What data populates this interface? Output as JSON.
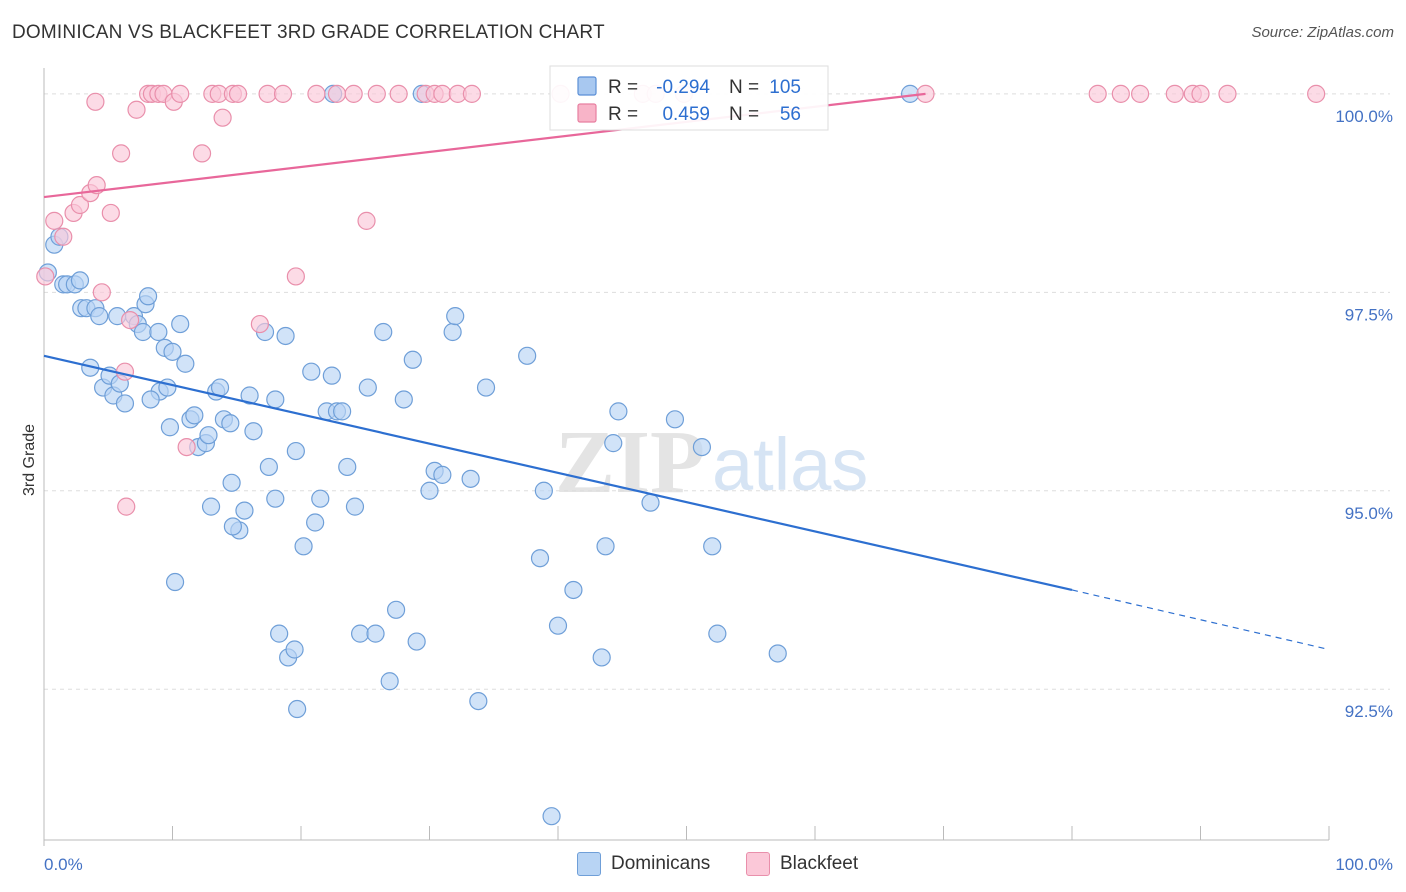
{
  "title": "DOMINICAN VS BLACKFEET 3RD GRADE CORRELATION CHART",
  "source": "Source: ZipAtlas.com",
  "watermark": {
    "zip": "ZIP",
    "atlas": "atlas"
  },
  "legend": {
    "rows": [
      {
        "r_label": "R =",
        "r_value": "-0.294",
        "n_label": "N =",
        "n_value": "105",
        "color": "#a8c8f0",
        "border": "#5b8fd6"
      },
      {
        "r_label": "R =",
        "r_value": "0.459",
        "n_label": "N =",
        "n_value": "56",
        "color": "#f8b4c8",
        "border": "#e77fa0"
      }
    ]
  },
  "bottom_legend": [
    {
      "label": "Dominicans",
      "color": "#b8d4f4",
      "border": "#6f9fd8"
    },
    {
      "label": "Blackfeet",
      "color": "#fbc8d8",
      "border": "#e98fab"
    }
  ],
  "chart_data": {
    "type": "scatter",
    "xlabel": "",
    "ylabel": "3rd Grade",
    "xlim": [
      0,
      100
    ],
    "ylim": [
      90.6,
      100.2
    ],
    "x_tick_labels": [
      "0.0%",
      "100.0%"
    ],
    "y_ticks": [
      92.5,
      95.0,
      97.5,
      100.0
    ],
    "y_tick_labels": [
      "92.5%",
      "95.0%",
      "97.5%",
      "100.0%"
    ],
    "grid": true,
    "legend_position": "top-center",
    "series": [
      {
        "name": "Dominicans",
        "color": "#6f9fd8",
        "fill": "#b8d4f4",
        "trend": {
          "x0": 0,
          "y0": 96.7,
          "x1": 80,
          "y1": 93.75,
          "dash_to": 100,
          "dash_y": 93.0
        },
        "points": [
          [
            0.3,
            97.75
          ],
          [
            0.8,
            98.1
          ],
          [
            1.2,
            98.2
          ],
          [
            1.5,
            97.6
          ],
          [
            1.8,
            97.6
          ],
          [
            2.4,
            97.6
          ],
          [
            2.8,
            97.65
          ],
          [
            2.9,
            97.3
          ],
          [
            3.3,
            97.3
          ],
          [
            4.0,
            97.3
          ],
          [
            4.3,
            97.2
          ],
          [
            3.6,
            96.55
          ],
          [
            4.6,
            96.3
          ],
          [
            5.1,
            96.45
          ],
          [
            5.4,
            96.2
          ],
          [
            5.9,
            96.35
          ],
          [
            6.3,
            96.1
          ],
          [
            5.7,
            97.2
          ],
          [
            7.0,
            97.2
          ],
          [
            7.3,
            97.1
          ],
          [
            7.7,
            97.0
          ],
          [
            7.9,
            97.35
          ],
          [
            8.1,
            97.45
          ],
          [
            8.9,
            97.0
          ],
          [
            9.0,
            96.25
          ],
          [
            9.4,
            96.8
          ],
          [
            10.0,
            96.75
          ],
          [
            8.3,
            96.15
          ],
          [
            9.6,
            96.3
          ],
          [
            11.0,
            96.6
          ],
          [
            10.6,
            97.1
          ],
          [
            9.8,
            95.8
          ],
          [
            11.4,
            95.9
          ],
          [
            11.7,
            95.95
          ],
          [
            12.0,
            95.55
          ],
          [
            12.6,
            95.6
          ],
          [
            12.8,
            95.7
          ],
          [
            13.0,
            94.8
          ],
          [
            13.4,
            96.25
          ],
          [
            13.7,
            96.3
          ],
          [
            14.0,
            95.9
          ],
          [
            14.5,
            95.85
          ],
          [
            14.6,
            95.1
          ],
          [
            15.2,
            94.5
          ],
          [
            15.6,
            94.75
          ],
          [
            16.0,
            96.2
          ],
          [
            16.3,
            95.75
          ],
          [
            17.2,
            97.0
          ],
          [
            17.5,
            95.3
          ],
          [
            18.0,
            94.9
          ],
          [
            18.0,
            96.15
          ],
          [
            18.3,
            93.2
          ],
          [
            18.8,
            96.95
          ],
          [
            19.0,
            92.9
          ],
          [
            19.5,
            93.0
          ],
          [
            19.6,
            95.5
          ],
          [
            19.7,
            92.25
          ],
          [
            20.2,
            94.3
          ],
          [
            20.8,
            96.5
          ],
          [
            21.1,
            94.6
          ],
          [
            21.5,
            94.9
          ],
          [
            22.0,
            96.0
          ],
          [
            22.4,
            96.45
          ],
          [
            22.8,
            96.0
          ],
          [
            23.2,
            96.0
          ],
          [
            23.6,
            95.3
          ],
          [
            24.2,
            94.8
          ],
          [
            24.6,
            93.2
          ],
          [
            25.2,
            96.3
          ],
          [
            25.8,
            93.2
          ],
          [
            26.4,
            97.0
          ],
          [
            26.9,
            92.6
          ],
          [
            27.4,
            93.5
          ],
          [
            28.0,
            96.15
          ],
          [
            28.7,
            96.65
          ],
          [
            29.0,
            93.1
          ],
          [
            30.0,
            95.0
          ],
          [
            30.4,
            95.25
          ],
          [
            31.0,
            95.2
          ],
          [
            31.8,
            97.0
          ],
          [
            32.0,
            97.2
          ],
          [
            33.2,
            95.15
          ],
          [
            33.8,
            92.35
          ],
          [
            34.4,
            96.3
          ],
          [
            37.6,
            96.7
          ],
          [
            38.6,
            94.15
          ],
          [
            38.9,
            95.0
          ],
          [
            39.5,
            90.9
          ],
          [
            40.0,
            93.3
          ],
          [
            41.2,
            93.75
          ],
          [
            43.4,
            92.9
          ],
          [
            43.7,
            94.3
          ],
          [
            44.3,
            95.6
          ],
          [
            44.7,
            96.0
          ],
          [
            47.2,
            94.85
          ],
          [
            49.1,
            95.9
          ],
          [
            51.2,
            95.55
          ],
          [
            52.0,
            94.3
          ],
          [
            52.4,
            93.2
          ],
          [
            57.1,
            92.95
          ],
          [
            14.7,
            94.55
          ],
          [
            10.2,
            93.85
          ],
          [
            67.4,
            100.0
          ],
          [
            22.5,
            100.0
          ],
          [
            29.4,
            100.0
          ]
        ]
      },
      {
        "name": "Blackfeet",
        "color": "#e98fab",
        "fill": "#fbc8d8",
        "trend": {
          "x0": 0,
          "y0": 98.7,
          "x1": 68.6,
          "y1": 100.0
        },
        "points": [
          [
            0.1,
            97.7
          ],
          [
            0.8,
            98.4
          ],
          [
            1.5,
            98.2
          ],
          [
            2.3,
            98.5
          ],
          [
            2.8,
            98.6
          ],
          [
            3.6,
            98.75
          ],
          [
            4.1,
            98.85
          ],
          [
            4.5,
            97.5
          ],
          [
            5.2,
            98.5
          ],
          [
            6.0,
            99.25
          ],
          [
            6.3,
            96.5
          ],
          [
            6.7,
            97.15
          ],
          [
            7.2,
            99.8
          ],
          [
            8.1,
            100.0
          ],
          [
            8.4,
            100.0
          ],
          [
            8.9,
            100.0
          ],
          [
            9.3,
            100.0
          ],
          [
            10.1,
            99.9
          ],
          [
            10.6,
            100.0
          ],
          [
            11.1,
            95.55
          ],
          [
            12.3,
            99.25
          ],
          [
            13.1,
            100.0
          ],
          [
            13.6,
            100.0
          ],
          [
            13.9,
            99.7
          ],
          [
            14.7,
            100.0
          ],
          [
            15.1,
            100.0
          ],
          [
            16.8,
            97.1
          ],
          [
            17.4,
            100.0
          ],
          [
            18.6,
            100.0
          ],
          [
            19.6,
            97.7
          ],
          [
            21.2,
            100.0
          ],
          [
            22.8,
            100.0
          ],
          [
            24.1,
            100.0
          ],
          [
            25.1,
            98.4
          ],
          [
            25.9,
            100.0
          ],
          [
            27.6,
            100.0
          ],
          [
            29.7,
            100.0
          ],
          [
            30.4,
            100.0
          ],
          [
            31.0,
            100.0
          ],
          [
            32.2,
            100.0
          ],
          [
            33.3,
            100.0
          ],
          [
            40.2,
            100.0
          ],
          [
            46.6,
            100.0
          ],
          [
            47.6,
            100.0
          ],
          [
            49.8,
            100.0
          ],
          [
            68.6,
            100.0
          ],
          [
            82.0,
            100.0
          ],
          [
            83.8,
            100.0
          ],
          [
            85.3,
            100.0
          ],
          [
            88.0,
            100.0
          ],
          [
            89.4,
            100.0
          ],
          [
            90.0,
            100.0
          ],
          [
            92.1,
            100.0
          ],
          [
            99.0,
            100.0
          ],
          [
            6.4,
            94.8
          ],
          [
            4.0,
            99.9
          ]
        ]
      }
    ]
  }
}
